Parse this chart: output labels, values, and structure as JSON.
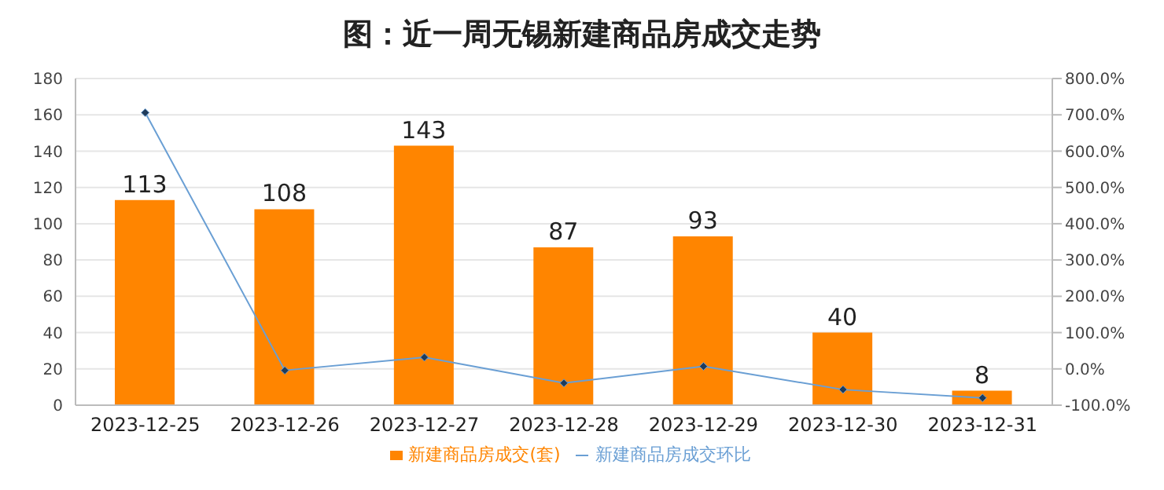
{
  "chart_data": {
    "type": "bar",
    "title": "图：近一周无锡新建商品房成交走势",
    "categories": [
      "2023-12-25",
      "2023-12-26",
      "2023-12-27",
      "2023-12-28",
      "2023-12-29",
      "2023-12-30",
      "2023-12-31"
    ],
    "series": [
      {
        "name": "新建商品房成交(套)",
        "color": "#ff8500",
        "values": [
          113,
          108,
          143,
          87,
          93,
          40,
          8
        ],
        "data_labels": true
      },
      {
        "name": "新建商品房成交环比",
        "type": "line",
        "axis": "y2",
        "color": "#6a9fd4",
        "marker": "diamond",
        "values": [
          706,
          -4,
          32,
          -39,
          7,
          -57,
          -80
        ]
      }
    ],
    "ylim": [
      0,
      180
    ],
    "yticks": [
      0,
      20,
      40,
      60,
      80,
      100,
      120,
      140,
      160,
      180
    ],
    "y2lim": [
      -100,
      800
    ],
    "y2ticks": [
      {
        "value": -100,
        "label": "-100.0%"
      },
      {
        "value": 0,
        "label": "0.0%"
      },
      {
        "value": 100,
        "label": "100.0%"
      },
      {
        "value": 200,
        "label": "200.0%"
      },
      {
        "value": 300,
        "label": "300.0%"
      },
      {
        "value": 400,
        "label": "400.0%"
      },
      {
        "value": 500,
        "label": "500.0%"
      },
      {
        "value": 600,
        "label": "600.0%"
      },
      {
        "value": 700,
        "label": "700.0%"
      },
      {
        "value": 800,
        "label": "800.0%"
      }
    ],
    "grid": "y",
    "legend": "bottom"
  }
}
